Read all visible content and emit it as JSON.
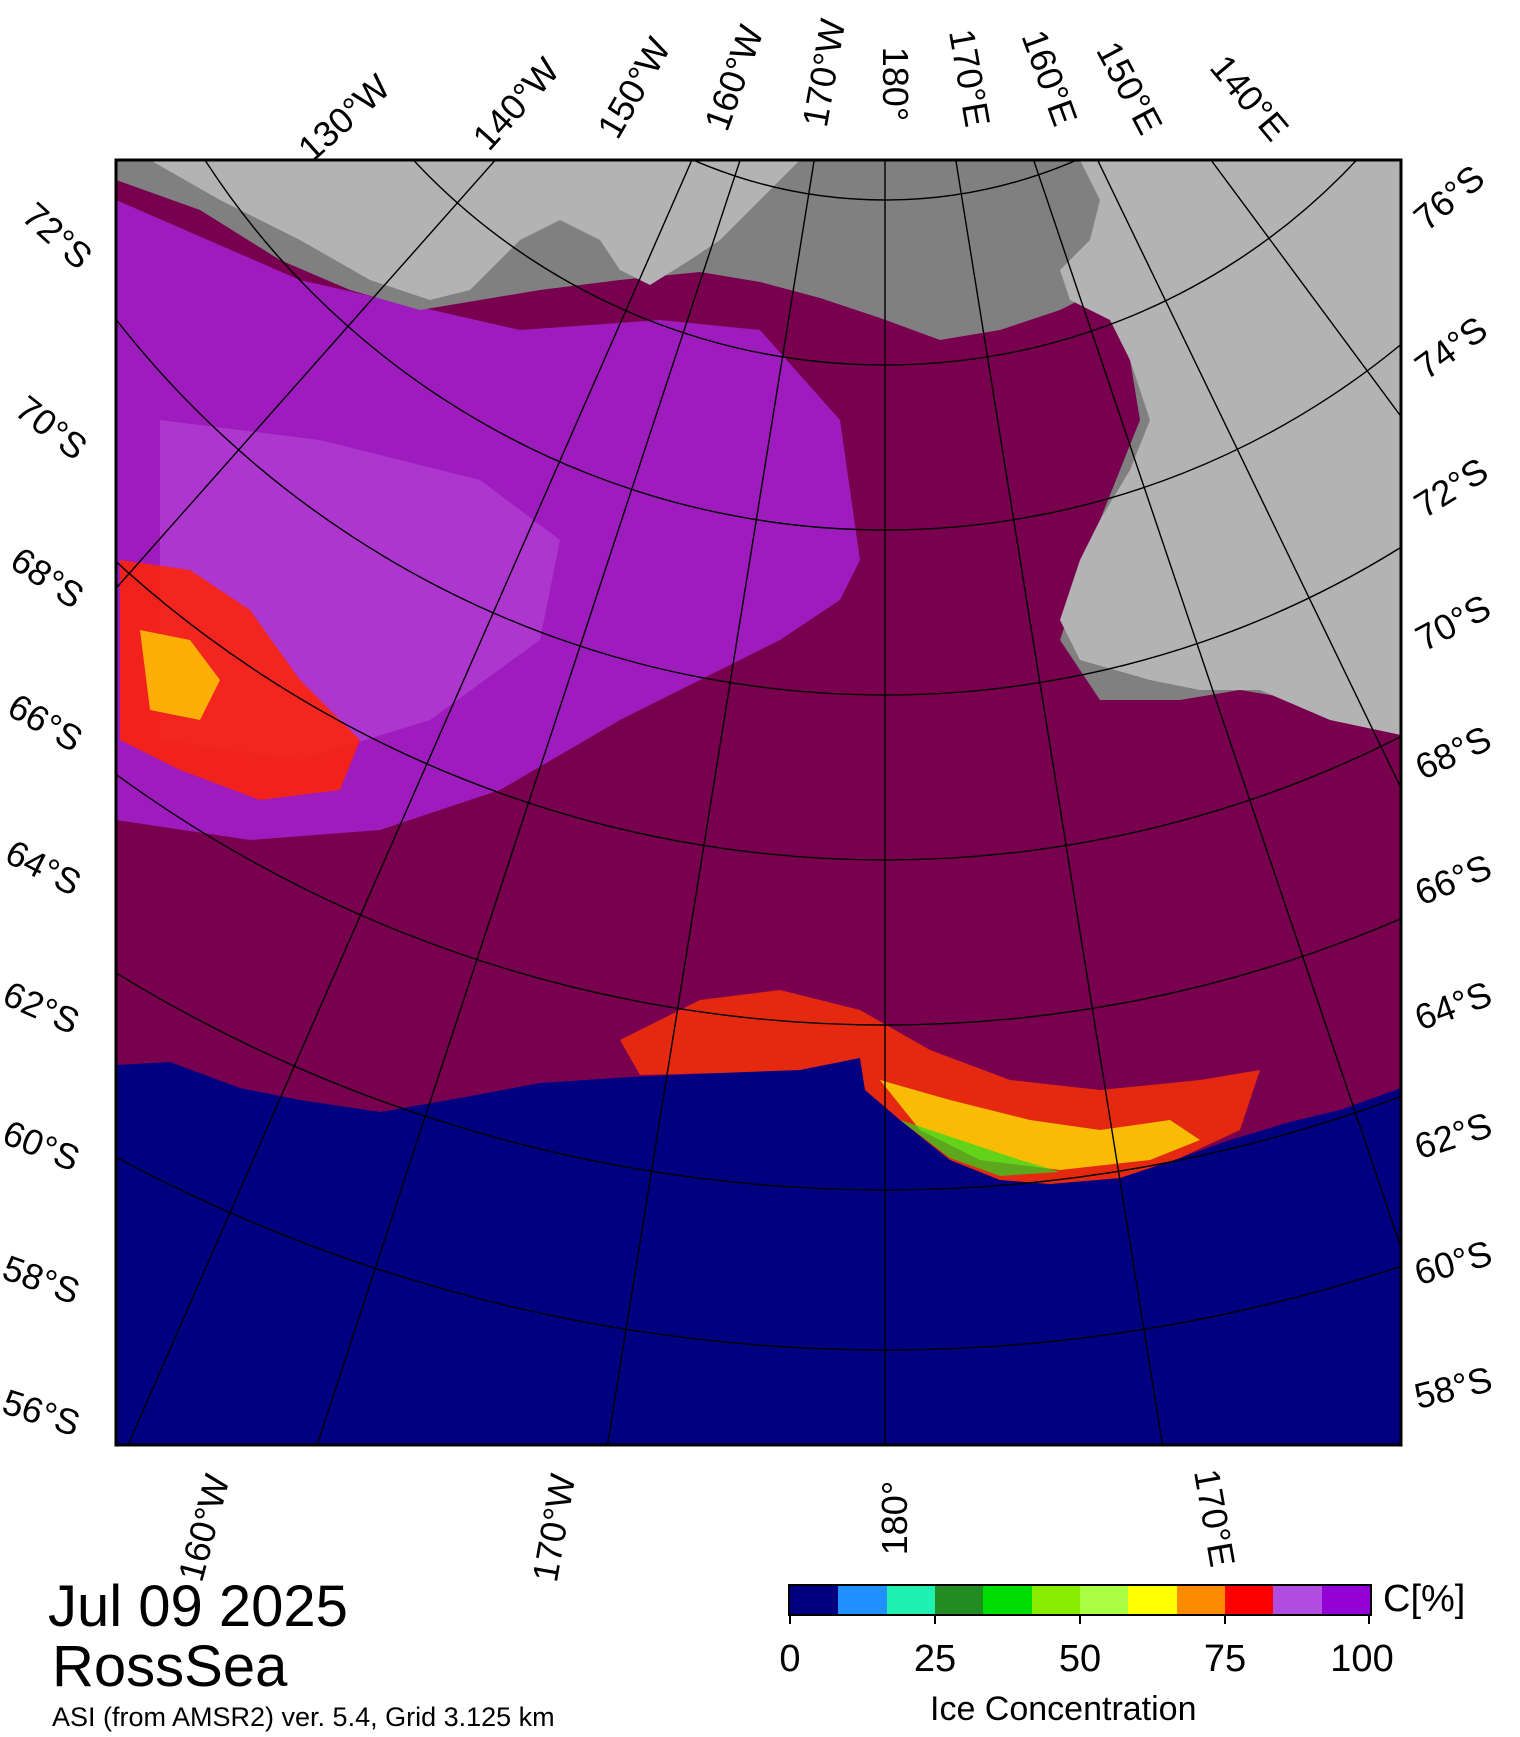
{
  "header": {
    "date": "Jul 09 2025",
    "region": "RossSea",
    "product": "ASI (from AMSR2) ver. 5.4,  Grid 3.125 km"
  },
  "map": {
    "projection": "polar stereographic",
    "top_longitude_labels": [
      "130°W",
      "140°W",
      "150°W",
      "160°W",
      "170°W",
      "180°",
      "170°E",
      "160°E",
      "150°E",
      "140°E"
    ],
    "bottom_longitude_labels": [
      "160°W",
      "170°W",
      "180°",
      "170°E"
    ],
    "left_latitude_labels": [
      "72°S",
      "70°S",
      "68°S",
      "66°S",
      "64°S",
      "62°S",
      "60°S",
      "58°S",
      "56°S"
    ],
    "right_latitude_labels": [
      "76°S",
      "74°S",
      "72°S",
      "70°S",
      "68°S",
      "66°S",
      "64°S",
      "62°S",
      "60°S",
      "58°S"
    ],
    "colors": {
      "land": "#b3b3b3",
      "ice_shelf": "#808080",
      "open_water": "#000080",
      "high_concentration": "#78004f",
      "graticule": "#000000"
    }
  },
  "colorbar": {
    "title": "Ice Concentration",
    "unit": "C[%]",
    "ticks": [
      "0",
      "25",
      "50",
      "75",
      "100"
    ],
    "colors": [
      "#000080",
      "#1e90ff",
      "#20f0b0",
      "#228b22",
      "#00dd00",
      "#88ee00",
      "#aaff44",
      "#ffff00",
      "#ff8c00",
      "#ff0000",
      "#b04ce0",
      "#9400d3"
    ]
  }
}
